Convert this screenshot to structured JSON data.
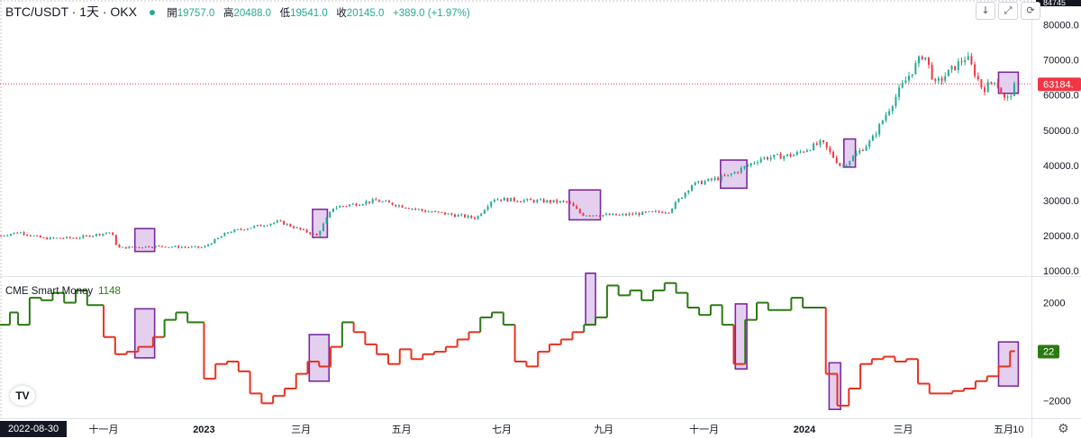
{
  "header": {
    "symbol": "BTC/USDT · 1天 · OKX",
    "open_label": "開",
    "open": "19757.0",
    "high_label": "高",
    "high": "20488.0",
    "low_label": "低",
    "low": "19541.0",
    "close_label": "收",
    "close": "20145.0",
    "change": "+389.0 (+1.97%)"
  },
  "indicator": {
    "name": "CME Smart Money",
    "value": "1148"
  },
  "toolbar": {
    "down_icon": "arrow-down-icon",
    "expand_icon": "expand-icon",
    "refresh_icon": "refresh-icon",
    "settings_icon": "gear-icon"
  },
  "date_label": "2022-08-30",
  "tv_logo": "TV",
  "colors": {
    "up": "#22ab94",
    "down": "#f23645",
    "smart_green": "#2a7a12",
    "smart_red": "#e8321f",
    "box_fill": "#e1c7ec",
    "box_stroke": "#7b2a9e",
    "last_price": "#f23645"
  },
  "chart_data": [
    {
      "type": "candlestick",
      "title": "BTC/USDT · 1天 · OKX",
      "y_ticks": [
        10000,
        20000,
        30000,
        40000,
        50000,
        60000,
        70000,
        80000
      ],
      "y_tick_labels": [
        "10000.0",
        "20000.0",
        "30000.0",
        "40000.0",
        "50000.0",
        "60000.0",
        "70000.0",
        "80000.0"
      ],
      "top_partial_label": "84745",
      "ylim": [
        9000,
        85000
      ],
      "last_price": 63184,
      "last_price_label": "63184.",
      "x_tick_labels": [
        "十一月",
        "2023",
        "三月",
        "五月",
        "七月",
        "九月",
        "十一月",
        "2024",
        "三月",
        "五月",
        "10"
      ],
      "x_tick_dates": [
        "2022-11-01",
        "2023-01-01",
        "2023-03-01",
        "2023-05-01",
        "2023-07-01",
        "2023-09-01",
        "2023-11-01",
        "2024-01-01",
        "2024-03-01",
        "2024-05-01",
        "2024-05-10"
      ],
      "xlim": [
        "2022-08-30",
        "2024-05-18"
      ],
      "price_path": [
        [
          "2022-08-30",
          20000
        ],
        [
          "2022-09-10",
          21000
        ],
        [
          "2022-09-25",
          19200
        ],
        [
          "2022-10-15",
          19400
        ],
        [
          "2022-11-05",
          21000
        ],
        [
          "2022-11-09",
          16500
        ],
        [
          "2022-12-01",
          17000
        ],
        [
          "2022-12-31",
          16600
        ],
        [
          "2023-01-15",
          21000
        ],
        [
          "2023-02-15",
          24000
        ],
        [
          "2023-03-10",
          20000
        ],
        [
          "2023-03-20",
          28000
        ],
        [
          "2023-04-15",
          30000
        ],
        [
          "2023-05-15",
          27000
        ],
        [
          "2023-06-15",
          25000
        ],
        [
          "2023-06-25",
          30500
        ],
        [
          "2023-07-15",
          30000
        ],
        [
          "2023-08-10",
          29500
        ],
        [
          "2023-08-18",
          26000
        ],
        [
          "2023-09-10",
          25800
        ],
        [
          "2023-10-10",
          27000
        ],
        [
          "2023-10-24",
          34500
        ],
        [
          "2023-11-15",
          37000
        ],
        [
          "2023-12-05",
          42000
        ],
        [
          "2023-12-25",
          43000
        ],
        [
          "2024-01-11",
          46500
        ],
        [
          "2024-01-23",
          39500
        ],
        [
          "2024-02-10",
          47000
        ],
        [
          "2024-02-28",
          62000
        ],
        [
          "2024-03-13",
          72000
        ],
        [
          "2024-03-20",
          63000
        ],
        [
          "2024-04-08",
          71000
        ],
        [
          "2024-04-18",
          61500
        ],
        [
          "2024-04-25",
          64500
        ],
        [
          "2024-05-02",
          58000
        ],
        [
          "2024-05-08",
          63184
        ]
      ],
      "highlight_boxes": [
        {
          "x": [
            "2022-11-20",
            "2022-12-02"
          ],
          "y": [
            15500,
            22000
          ]
        },
        {
          "x": [
            "2023-03-08",
            "2023-03-17"
          ],
          "y": [
            19500,
            27500
          ]
        },
        {
          "x": [
            "2023-08-11",
            "2023-08-30"
          ],
          "y": [
            24500,
            33000
          ]
        },
        {
          "x": [
            "2023-11-11",
            "2023-11-27"
          ],
          "y": [
            33500,
            41500
          ]
        },
        {
          "x": [
            "2024-01-25",
            "2024-02-01"
          ],
          "y": [
            39500,
            47500
          ]
        },
        {
          "x": [
            "2024-04-28",
            "2024-05-10"
          ],
          "y": [
            60500,
            66500
          ]
        }
      ]
    },
    {
      "type": "line",
      "name": "CME Smart Money",
      "value_label": "1148",
      "y_ticks": [
        -2000,
        2000
      ],
      "y_tick_labels": [
        "−2000",
        "2000"
      ],
      "ylim": [
        -2600,
        2900
      ],
      "current_value": 22,
      "current_value_label": "22",
      "threshold": 950,
      "steps": [
        [
          "2022-08-30",
          1100
        ],
        [
          "2022-09-05",
          1600
        ],
        [
          "2022-09-10",
          1100
        ],
        [
          "2022-09-17",
          2200
        ],
        [
          "2022-09-24",
          2100
        ],
        [
          "2022-10-01",
          2400
        ],
        [
          "2022-10-08",
          2000
        ],
        [
          "2022-10-15",
          2500
        ],
        [
          "2022-10-22",
          1900
        ],
        [
          "2022-11-01",
          600
        ],
        [
          "2022-11-08",
          -100
        ],
        [
          "2022-11-15",
          0
        ],
        [
          "2022-11-22",
          200
        ],
        [
          "2022-12-01",
          600
        ],
        [
          "2022-12-08",
          1300
        ],
        [
          "2022-12-15",
          1600
        ],
        [
          "2022-12-22",
          1200
        ],
        [
          "2023-01-01",
          -1100
        ],
        [
          "2023-01-08",
          -500
        ],
        [
          "2023-01-15",
          -400
        ],
        [
          "2023-01-22",
          -800
        ],
        [
          "2023-01-29",
          -1700
        ],
        [
          "2023-02-05",
          -2100
        ],
        [
          "2023-02-12",
          -1800
        ],
        [
          "2023-02-19",
          -1500
        ],
        [
          "2023-02-26",
          -900
        ],
        [
          "2023-03-05",
          -400
        ],
        [
          "2023-03-12",
          -600
        ],
        [
          "2023-03-19",
          200
        ],
        [
          "2023-03-26",
          1200
        ],
        [
          "2023-04-02",
          800
        ],
        [
          "2023-04-09",
          300
        ],
        [
          "2023-04-16",
          -100
        ],
        [
          "2023-04-23",
          -500
        ],
        [
          "2023-04-30",
          100
        ],
        [
          "2023-05-07",
          -300
        ],
        [
          "2023-05-14",
          -100
        ],
        [
          "2023-05-21",
          0
        ],
        [
          "2023-05-28",
          200
        ],
        [
          "2023-06-04",
          500
        ],
        [
          "2023-06-11",
          800
        ],
        [
          "2023-06-18",
          1400
        ],
        [
          "2023-06-25",
          1600
        ],
        [
          "2023-07-02",
          1100
        ],
        [
          "2023-07-09",
          -400
        ],
        [
          "2023-07-16",
          -600
        ],
        [
          "2023-07-23",
          0
        ],
        [
          "2023-07-30",
          300
        ],
        [
          "2023-08-06",
          500
        ],
        [
          "2023-08-13",
          800
        ],
        [
          "2023-08-20",
          1100
        ],
        [
          "2023-08-27",
          1400
        ],
        [
          "2023-09-03",
          2700
        ],
        [
          "2023-09-10",
          2300
        ],
        [
          "2023-09-17",
          2500
        ],
        [
          "2023-09-24",
          2100
        ],
        [
          "2023-10-01",
          2500
        ],
        [
          "2023-10-08",
          2800
        ],
        [
          "2023-10-15",
          2400
        ],
        [
          "2023-10-22",
          1800
        ],
        [
          "2023-10-29",
          1500
        ],
        [
          "2023-11-05",
          1900
        ],
        [
          "2023-11-12",
          1100
        ],
        [
          "2023-11-19",
          -500
        ],
        [
          "2023-11-26",
          1300
        ],
        [
          "2023-12-03",
          2000
        ],
        [
          "2023-12-10",
          1700
        ],
        [
          "2023-12-17",
          1700
        ],
        [
          "2023-12-24",
          2200
        ],
        [
          "2023-12-31",
          1800
        ],
        [
          "2024-01-07",
          1800
        ],
        [
          "2024-01-14",
          -900
        ],
        [
          "2024-01-21",
          -2200
        ],
        [
          "2024-01-28",
          -1500
        ],
        [
          "2024-02-04",
          -500
        ],
        [
          "2024-02-11",
          -300
        ],
        [
          "2024-02-18",
          -200
        ],
        [
          "2024-02-25",
          -400
        ],
        [
          "2024-03-03",
          -300
        ],
        [
          "2024-03-10",
          -1300
        ],
        [
          "2024-03-17",
          -1700
        ],
        [
          "2024-03-24",
          -1700
        ],
        [
          "2024-03-31",
          -1600
        ],
        [
          "2024-04-07",
          -1500
        ],
        [
          "2024-04-14",
          -1200
        ],
        [
          "2024-04-21",
          -1000
        ],
        [
          "2024-04-28",
          -600
        ],
        [
          "2024-05-05",
          22
        ],
        [
          "2024-05-08",
          22
        ]
      ],
      "highlight_boxes": [
        {
          "x": [
            "2022-11-20",
            "2022-12-02"
          ],
          "y": [
            -250,
            1750
          ]
        },
        {
          "x": [
            "2023-03-06",
            "2023-03-18"
          ],
          "y": [
            -1200,
            700
          ]
        },
        {
          "x": [
            "2023-08-21",
            "2023-08-27"
          ],
          "y": [
            1100,
            3200
          ]
        },
        {
          "x": [
            "2023-11-20",
            "2023-11-27"
          ],
          "y": [
            -700,
            1950
          ]
        },
        {
          "x": [
            "2024-01-16",
            "2024-01-23"
          ],
          "y": [
            -2350,
            -450
          ]
        },
        {
          "x": [
            "2024-04-28",
            "2024-05-10"
          ],
          "y": [
            -1400,
            400
          ]
        }
      ]
    }
  ]
}
